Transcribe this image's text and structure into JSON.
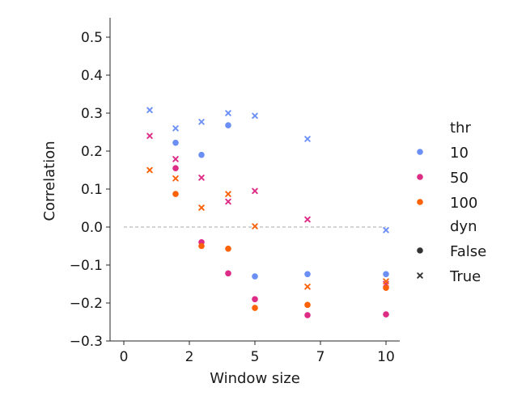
{
  "chart_data": {
    "type": "scatter",
    "title": "",
    "xlabel": "Window size",
    "ylabel": "Correlation",
    "x_tick_labels": [
      "0",
      "2",
      "5",
      "7",
      "10"
    ],
    "y_tick_labels": [
      "−0.3",
      "−0.2",
      "−0.1",
      "0.0",
      "0.1",
      "0.2",
      "0.3",
      "0.4",
      "0.5"
    ],
    "ylim": [
      -0.3,
      0.55
    ],
    "grid": false,
    "reference_line_y": 0.0,
    "legend": {
      "position": "right",
      "hue_title": "thr",
      "style_title": "dyn",
      "hue_entries": [
        "10",
        "50",
        "100"
      ],
      "style_entries": [
        "False",
        "True"
      ]
    },
    "colors": {
      "10": "#6b8ff5",
      "50": "#dd2c86",
      "100": "#fb6106"
    },
    "x_positions": [
      1,
      2,
      3,
      4,
      5,
      7,
      10
    ],
    "series": [
      {
        "thr": "10",
        "dyn": "False",
        "values": [
          null,
          0.222,
          0.19,
          0.268,
          -0.13,
          -0.124,
          -0.124
        ]
      },
      {
        "thr": "10",
        "dyn": "True",
        "values": [
          0.308,
          0.26,
          0.277,
          0.3,
          0.293,
          0.232,
          -0.008
        ]
      },
      {
        "thr": "50",
        "dyn": "False",
        "values": [
          null,
          0.155,
          -0.04,
          -0.122,
          -0.19,
          -0.232,
          -0.23
        ]
      },
      {
        "thr": "50",
        "dyn": "True",
        "values": [
          0.24,
          0.179,
          0.13,
          0.067,
          0.095,
          0.02,
          -0.15
        ]
      },
      {
        "thr": "100",
        "dyn": "False",
        "values": [
          null,
          0.087,
          -0.05,
          -0.057,
          -0.213,
          -0.205,
          -0.16
        ]
      },
      {
        "thr": "100",
        "dyn": "True",
        "values": [
          0.15,
          0.128,
          0.051,
          0.087,
          0.002,
          -0.157,
          -0.143
        ]
      }
    ]
  }
}
